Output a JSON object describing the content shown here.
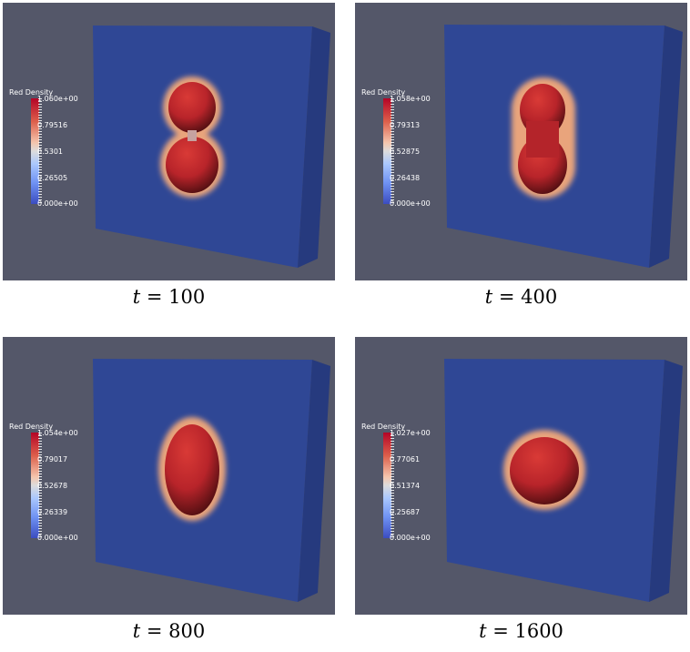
{
  "panels": [
    {
      "legend_title": "Red Density",
      "ticks": [
        "1.060e+00",
        "0.79516",
        "0.5301",
        "0.26505",
        "0.000e+00"
      ],
      "caption_var": "t",
      "caption_value": "= 100"
    },
    {
      "legend_title": "Red Density",
      "ticks": [
        "1.058e+00",
        "0.79313",
        "0.52875",
        "0.26438",
        "0.000e+00"
      ],
      "caption_var": "t",
      "caption_value": "= 400"
    },
    {
      "legend_title": "Red Density",
      "ticks": [
        "1.054e+00",
        "0.79017",
        "0.52678",
        "0.26339",
        "0.000e+00"
      ],
      "caption_var": "t",
      "caption_value": "= 800"
    },
    {
      "legend_title": "Red Density",
      "ticks": [
        "1.027e+00",
        "0.77061",
        "0.51374",
        "0.25687",
        "0.000e+00"
      ],
      "caption_var": "t",
      "caption_value": "= 1600"
    }
  ],
  "colors": {
    "background": "#545769",
    "box_front": "#2f4795",
    "box_side": "#273b80",
    "droplet_core": "#c42a2a",
    "halo": "#f1b88d"
  }
}
